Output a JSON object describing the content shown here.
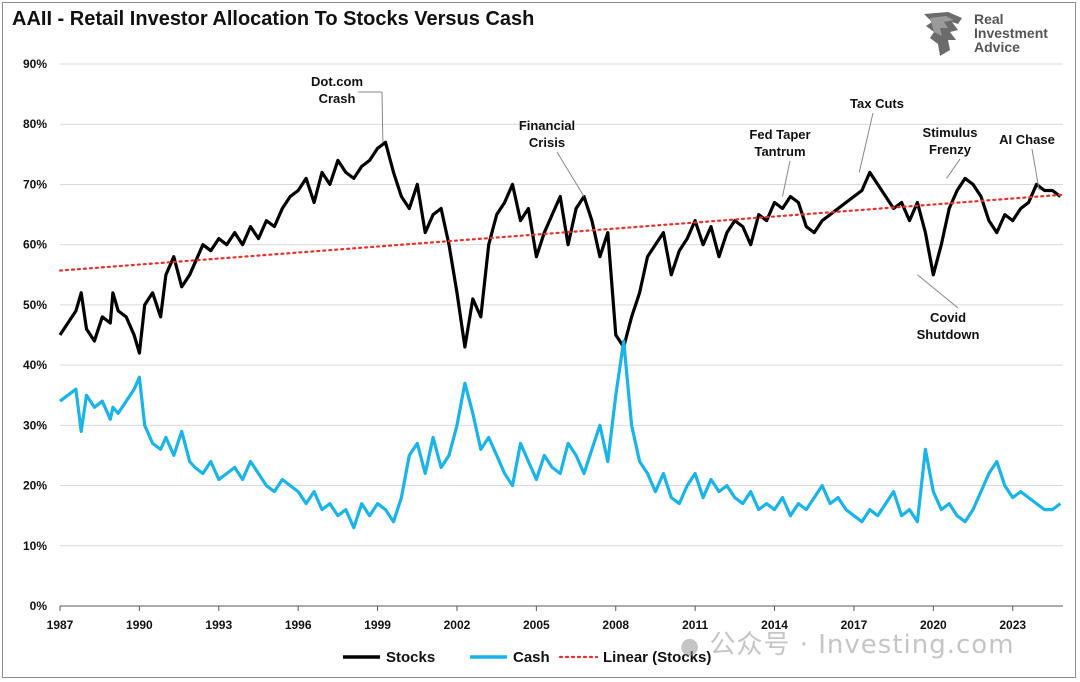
{
  "colors": {
    "stocks": "#000000",
    "cash": "#18b4ea",
    "trend": "#e8302b",
    "grid": "#d9d9d9",
    "axis": "#595959"
  },
  "logo": {
    "icon": "lion-head-icon",
    "line1": "Real",
    "line2": "Investment",
    "line3": "Advice"
  },
  "watermark": {
    "text": "公众号 · Investing.com",
    "icon": "wechat-icon"
  },
  "chart_data": {
    "type": "line",
    "title": "AAII - Retail Investor Allocation To Stocks Versus Cash",
    "xlabel": "",
    "ylabel": "",
    "xlim": [
      1987.0,
      2024.9
    ],
    "ylim": [
      0,
      90
    ],
    "grid": true,
    "legend_position": "bottom",
    "x_ticks": [
      "1987",
      "1990",
      "1993",
      "1996",
      "1999",
      "2002",
      "2005",
      "2008",
      "2011",
      "2014",
      "2017",
      "2020",
      "2023"
    ],
    "y_ticks": [
      "0%",
      "10%",
      "20%",
      "30%",
      "40%",
      "50%",
      "60%",
      "70%",
      "80%",
      "90%"
    ],
    "series": [
      {
        "name": "Stocks",
        "x": [
          1987.0,
          1987.3,
          1987.6,
          1987.8,
          1988.0,
          1988.3,
          1988.6,
          1988.9,
          1989.0,
          1989.2,
          1989.5,
          1989.8,
          1990.0,
          1990.2,
          1990.5,
          1990.8,
          1991.0,
          1991.3,
          1991.6,
          1991.9,
          1992.1,
          1992.4,
          1992.7,
          1993.0,
          1993.3,
          1993.6,
          1993.9,
          1994.2,
          1994.5,
          1994.8,
          1995.1,
          1995.4,
          1995.7,
          1996.0,
          1996.3,
          1996.6,
          1996.9,
          1997.2,
          1997.5,
          1997.8,
          1998.1,
          1998.4,
          1998.7,
          1999.0,
          1999.3,
          1999.6,
          1999.9,
          2000.2,
          2000.5,
          2000.8,
          2001.1,
          2001.4,
          2001.7,
          2002.0,
          2002.3,
          2002.6,
          2002.9,
          2003.2,
          2003.5,
          2003.8,
          2004.1,
          2004.4,
          2004.7,
          2005.0,
          2005.3,
          2005.6,
          2005.9,
          2006.2,
          2006.5,
          2006.8,
          2007.1,
          2007.4,
          2007.7,
          2008.0,
          2008.3,
          2008.6,
          2008.9,
          2009.2,
          2009.5,
          2009.8,
          2010.1,
          2010.4,
          2010.7,
          2011.0,
          2011.3,
          2011.6,
          2011.9,
          2012.2,
          2012.5,
          2012.8,
          2013.1,
          2013.4,
          2013.7,
          2014.0,
          2014.3,
          2014.6,
          2014.9,
          2015.2,
          2015.5,
          2015.8,
          2016.1,
          2016.4,
          2016.7,
          2017.0,
          2017.3,
          2017.6,
          2017.9,
          2018.2,
          2018.5,
          2018.8,
          2019.1,
          2019.4,
          2019.7,
          2020.0,
          2020.3,
          2020.6,
          2020.9,
          2021.2,
          2021.5,
          2021.8,
          2022.1,
          2022.4,
          2022.7,
          2023.0,
          2023.3,
          2023.6,
          2023.9,
          2024.2,
          2024.5,
          2024.8
        ],
        "values": [
          45,
          47,
          49,
          52,
          46,
          44,
          48,
          47,
          52,
          49,
          48,
          45,
          42,
          50,
          52,
          48,
          55,
          58,
          53,
          55,
          57,
          60,
          59,
          61,
          60,
          62,
          60,
          63,
          61,
          64,
          63,
          66,
          68,
          69,
          71,
          67,
          72,
          70,
          74,
          72,
          71,
          73,
          74,
          76,
          77,
          72,
          68,
          66,
          70,
          62,
          65,
          66,
          60,
          52,
          43,
          51,
          48,
          60,
          65,
          67,
          70,
          64,
          66,
          58,
          62,
          65,
          68,
          60,
          66,
          68,
          64,
          58,
          62,
          45,
          43,
          48,
          52,
          58,
          60,
          62,
          55,
          59,
          61,
          64,
          60,
          63,
          58,
          62,
          64,
          63,
          60,
          65,
          64,
          67,
          66,
          68,
          67,
          63,
          62,
          64,
          65,
          66,
          67,
          68,
          69,
          72,
          70,
          68,
          66,
          67,
          64,
          67,
          62,
          55,
          60,
          66,
          69,
          71,
          70,
          68,
          64,
          62,
          65,
          64,
          66,
          67,
          70,
          69,
          69,
          68
        ]
      },
      {
        "name": "Cash",
        "x": [
          1987.0,
          1987.3,
          1987.6,
          1987.8,
          1988.0,
          1988.3,
          1988.6,
          1988.9,
          1989.0,
          1989.2,
          1989.5,
          1989.8,
          1990.0,
          1990.2,
          1990.5,
          1990.8,
          1991.0,
          1991.3,
          1991.6,
          1991.9,
          1992.1,
          1992.4,
          1992.7,
          1993.0,
          1993.3,
          1993.6,
          1993.9,
          1994.2,
          1994.5,
          1994.8,
          1995.1,
          1995.4,
          1995.7,
          1996.0,
          1996.3,
          1996.6,
          1996.9,
          1997.2,
          1997.5,
          1997.8,
          1998.1,
          1998.4,
          1998.7,
          1999.0,
          1999.3,
          1999.6,
          1999.9,
          2000.2,
          2000.5,
          2000.8,
          2001.1,
          2001.4,
          2001.7,
          2002.0,
          2002.3,
          2002.6,
          2002.9,
          2003.2,
          2003.5,
          2003.8,
          2004.1,
          2004.4,
          2004.7,
          2005.0,
          2005.3,
          2005.6,
          2005.9,
          2006.2,
          2006.5,
          2006.8,
          2007.1,
          2007.4,
          2007.7,
          2008.0,
          2008.3,
          2008.6,
          2008.9,
          2009.2,
          2009.5,
          2009.8,
          2010.1,
          2010.4,
          2010.7,
          2011.0,
          2011.3,
          2011.6,
          2011.9,
          2012.2,
          2012.5,
          2012.8,
          2013.1,
          2013.4,
          2013.7,
          2014.0,
          2014.3,
          2014.6,
          2014.9,
          2015.2,
          2015.5,
          2015.8,
          2016.1,
          2016.4,
          2016.7,
          2017.0,
          2017.3,
          2017.6,
          2017.9,
          2018.2,
          2018.5,
          2018.8,
          2019.1,
          2019.4,
          2019.7,
          2020.0,
          2020.3,
          2020.6,
          2020.9,
          2021.2,
          2021.5,
          2021.8,
          2022.1,
          2022.4,
          2022.7,
          2023.0,
          2023.3,
          2023.6,
          2023.9,
          2024.2,
          2024.5,
          2024.8
        ],
        "values": [
          34,
          35,
          36,
          29,
          35,
          33,
          34,
          31,
          33,
          32,
          34,
          36,
          38,
          30,
          27,
          26,
          28,
          25,
          29,
          24,
          23,
          22,
          24,
          21,
          22,
          23,
          21,
          24,
          22,
          20,
          19,
          21,
          20,
          19,
          17,
          19,
          16,
          17,
          15,
          16,
          13,
          17,
          15,
          17,
          16,
          14,
          18,
          25,
          27,
          22,
          28,
          23,
          25,
          30,
          37,
          32,
          26,
          28,
          25,
          22,
          20,
          27,
          24,
          21,
          25,
          23,
          22,
          27,
          25,
          22,
          26,
          30,
          24,
          35,
          44,
          30,
          24,
          22,
          19,
          22,
          18,
          17,
          20,
          22,
          18,
          21,
          19,
          20,
          18,
          17,
          19,
          16,
          17,
          16,
          18,
          15,
          17,
          16,
          18,
          20,
          17,
          18,
          16,
          15,
          14,
          16,
          15,
          17,
          19,
          15,
          16,
          14,
          26,
          19,
          16,
          17,
          15,
          14,
          16,
          19,
          22,
          24,
          20,
          18,
          19,
          18,
          17,
          16,
          16,
          17
        ]
      }
    ],
    "trendline": {
      "name": "Linear (Stocks)",
      "start": [
        1987.0,
        55.7
      ],
      "end": [
        2024.9,
        68.3
      ]
    },
    "annotations": [
      {
        "id": "dotcom",
        "lines": [
          "Dot.com",
          "Crash"
        ],
        "point": [
          1999.2,
          77
        ]
      },
      {
        "id": "financial",
        "lines": [
          "Financial",
          "Crisis"
        ],
        "point": [
          2006.8,
          68
        ]
      },
      {
        "id": "taper",
        "lines": [
          "Fed Taper",
          "Tantrum"
        ],
        "point": [
          2014.3,
          68
        ]
      },
      {
        "id": "taxcuts",
        "lines": [
          "Tax Cuts"
        ],
        "point": [
          2017.2,
          72
        ]
      },
      {
        "id": "stimulus",
        "lines": [
          "Stimulus",
          "Frenzy"
        ],
        "point": [
          2020.5,
          71
        ]
      },
      {
        "id": "aichase",
        "lines": [
          "AI Chase"
        ],
        "point": [
          2024.0,
          69
        ]
      },
      {
        "id": "covid",
        "lines": [
          "Covid",
          "Shutdown"
        ],
        "point": [
          2019.4,
          55
        ]
      }
    ]
  }
}
